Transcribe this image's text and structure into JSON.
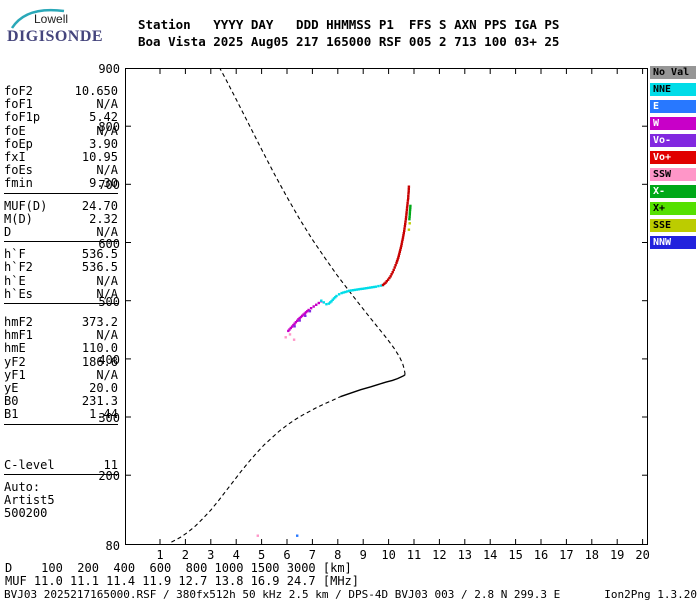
{
  "logo": {
    "line1": "Lowell",
    "line2": "DIGISONDE"
  },
  "header": {
    "line1": "Station   YYYY DAY   DDD HHMMSS P1  FFS S AXN PPS IGA PS",
    "line2": "Boa Vista 2025 Aug05 217 165000 RSF 005 2 713 100 03+ 25"
  },
  "params": {
    "groups": [
      {
        "rows": [
          {
            "label": "foF2",
            "value": "10.650"
          },
          {
            "label": "foF1",
            "value": "N/A"
          },
          {
            "label": "foF1p",
            "value": "5.42"
          },
          {
            "label": "foE",
            "value": "N/A"
          },
          {
            "label": "foEp",
            "value": "3.90"
          },
          {
            "label": "fxI",
            "value": "10.95"
          },
          {
            "label": "foEs",
            "value": "N/A"
          },
          {
            "label": "fmin",
            "value": "9.30"
          }
        ]
      },
      {
        "rows": [
          {
            "label": "MUF(D)",
            "value": "24.70"
          },
          {
            "label": "M(D)",
            "value": "2.32"
          },
          {
            "label": "D",
            "value": "N/A"
          }
        ]
      },
      {
        "rows": [
          {
            "label": "h`F",
            "value": "536.5"
          },
          {
            "label": "h`F2",
            "value": "536.5"
          },
          {
            "label": "h`E",
            "value": "N/A"
          },
          {
            "label": "h`Es",
            "value": "N/A"
          }
        ]
      },
      {
        "rows": [
          {
            "label": "hmF2",
            "value": "373.2"
          },
          {
            "label": "hmF1",
            "value": "N/A"
          },
          {
            "label": "hmE",
            "value": "110.0"
          },
          {
            "label": "yF2",
            "value": "186.6"
          },
          {
            "label": "yF1",
            "value": "N/A"
          },
          {
            "label": "yE",
            "value": "20.0"
          },
          {
            "label": "B0",
            "value": "231.3"
          },
          {
            "label": "B1",
            "value": "1.44"
          }
        ]
      },
      {
        "rows": [
          {
            "label": "C-level",
            "value": "11"
          }
        ]
      }
    ],
    "footer": [
      "Auto:",
      "Artist5",
      "500200"
    ]
  },
  "legend": {
    "items": [
      {
        "label": "No Val",
        "color": "#969696",
        "text_color": "#000000"
      },
      {
        "label": "NNE",
        "color": "#00DCE8",
        "text_color": "#000000"
      },
      {
        "label": "E",
        "color": "#2878FF",
        "text_color": "#ffffff"
      },
      {
        "label": "W",
        "color": "#C800C8",
        "text_color": "#ffffff"
      },
      {
        "label": "Vo-",
        "color": "#8228E0",
        "text_color": "#ffffff"
      },
      {
        "label": "Vo+",
        "color": "#E00000",
        "text_color": "#ffffff"
      },
      {
        "label": "SSW",
        "color": "#FF96C8",
        "text_color": "#000000"
      },
      {
        "label": "X-",
        "color": "#00A818",
        "text_color": "#ffffff"
      },
      {
        "label": "X+",
        "color": "#55E000",
        "text_color": "#000000"
      },
      {
        "label": "SSE",
        "color": "#BCCC00",
        "text_color": "#000000"
      },
      {
        "label": "NNW",
        "color": "#2222DD",
        "text_color": "#ffffff"
      }
    ]
  },
  "dmuf": {
    "d_label": "D",
    "d_values": [
      "100",
      "200",
      "400",
      "600",
      "800",
      "1000",
      "1500",
      "3000"
    ],
    "d_unit": "[km]",
    "muf_label": "MUF",
    "muf_values": [
      "11.0",
      "11.1",
      "11.4",
      "11.9",
      "12.7",
      "13.8",
      "16.9",
      "24.7"
    ],
    "muf_unit": "[MHz]"
  },
  "status": {
    "left": "BVJ03_2025217165000.RSF / 380fx512h 50 kHz 2.5 km / DPS-4D BVJ03 003 / 2.8 N 299.3 E",
    "right": "Ion2Png 1.3.20"
  },
  "chart_data": {
    "type": "scatter",
    "title": "Digisonde ionogram, Boa Vista 2025 Aug05 217 165000",
    "x_axis": {
      "ticks": [
        1,
        2,
        3,
        4,
        5,
        6,
        7,
        8,
        9,
        10,
        11,
        12,
        13,
        14,
        15,
        16,
        17,
        18,
        19,
        20
      ],
      "range": [
        -0.38,
        20.2
      ],
      "unit": "MHz"
    },
    "y_axis": {
      "ticks": [
        900,
        800,
        700,
        600,
        500,
        400,
        300,
        200,
        80
      ],
      "range": [
        80,
        900
      ],
      "unit": "km"
    },
    "grid": false,
    "profile": [
      {
        "name": "bottomside-extrapolated",
        "style": "dashed",
        "points": [
          [
            1.45,
            85
          ],
          [
            1.8,
            93
          ],
          [
            2.1,
            102
          ],
          [
            2.4,
            113
          ],
          [
            2.7,
            126
          ],
          [
            3.0,
            140
          ],
          [
            3.3,
            156
          ],
          [
            3.6,
            173
          ],
          [
            3.9,
            190
          ],
          [
            4.2,
            207
          ],
          [
            4.5,
            223
          ],
          [
            4.8,
            238
          ],
          [
            5.1,
            252
          ],
          [
            5.42,
            265
          ],
          [
            5.7,
            276
          ],
          [
            6.0,
            286
          ],
          [
            6.3,
            295
          ],
          [
            6.6,
            303
          ],
          [
            6.9,
            310
          ],
          [
            7.2,
            317
          ],
          [
            7.5,
            323
          ],
          [
            7.8,
            329
          ],
          [
            8.1,
            335
          ]
        ]
      },
      {
        "name": "bottomside-measured",
        "style": "solid",
        "points": [
          [
            8.1,
            335
          ],
          [
            8.5,
            341
          ],
          [
            8.9,
            347
          ],
          [
            9.3,
            352
          ],
          [
            9.6,
            356
          ],
          [
            9.9,
            360
          ],
          [
            10.15,
            363
          ],
          [
            10.35,
            366
          ],
          [
            10.5,
            369
          ],
          [
            10.6,
            371
          ],
          [
            10.65,
            373
          ]
        ]
      },
      {
        "name": "topside-extrapolated",
        "style": "dashed",
        "points": [
          [
            10.65,
            373
          ],
          [
            10.62,
            382
          ],
          [
            10.55,
            392
          ],
          [
            10.42,
            404
          ],
          [
            10.22,
            418
          ],
          [
            9.95,
            434
          ],
          [
            9.62,
            452
          ],
          [
            9.25,
            472
          ],
          [
            8.85,
            494
          ],
          [
            8.42,
            518
          ],
          [
            7.97,
            544
          ],
          [
            7.5,
            573
          ],
          [
            7.0,
            605
          ],
          [
            6.5,
            640
          ],
          [
            6.0,
            678
          ],
          [
            5.5,
            718
          ],
          [
            5.0,
            760
          ],
          [
            4.5,
            803
          ],
          [
            4.0,
            846
          ],
          [
            3.6,
            880
          ],
          [
            3.35,
            900
          ]
        ]
      }
    ],
    "traces": [
      {
        "name": "F-trace-W",
        "legend": "W",
        "color": "#C800C8",
        "mode": "line",
        "points": [
          [
            6.05,
            448
          ],
          [
            6.15,
            453
          ],
          [
            6.25,
            458
          ],
          [
            6.35,
            463
          ],
          [
            6.45,
            468
          ],
          [
            6.55,
            472
          ],
          [
            6.65,
            476
          ],
          [
            6.75,
            480
          ],
          [
            6.85,
            484
          ],
          [
            6.95,
            487
          ],
          [
            7.05,
            490
          ],
          [
            7.15,
            493
          ],
          [
            7.25,
            496
          ],
          [
            7.35,
            499
          ]
        ]
      },
      {
        "name": "F-trace-NNE",
        "legend": "NNE",
        "color": "#00DCE8",
        "mode": "line",
        "points": [
          [
            7.35,
            500
          ],
          [
            7.45,
            497
          ],
          [
            7.55,
            494
          ],
          [
            7.65,
            495
          ],
          [
            7.75,
            499
          ],
          [
            7.85,
            504
          ],
          [
            7.95,
            508
          ],
          [
            8.05,
            511
          ],
          [
            8.15,
            513
          ],
          [
            8.3,
            515
          ],
          [
            8.45,
            517
          ],
          [
            8.6,
            518
          ],
          [
            8.75,
            519
          ],
          [
            8.9,
            520
          ],
          [
            9.05,
            521
          ],
          [
            9.2,
            522
          ],
          [
            9.35,
            523
          ],
          [
            9.5,
            524
          ],
          [
            9.6,
            525
          ],
          [
            9.7,
            526
          ],
          [
            9.78,
            527
          ]
        ]
      },
      {
        "name": "F-trace-Vo+",
        "legend": "Vo+",
        "color": "#C80000",
        "mode": "line",
        "points": [
          [
            9.78,
            527
          ],
          [
            9.88,
            531
          ],
          [
            9.98,
            536
          ],
          [
            10.08,
            542
          ],
          [
            10.16,
            549
          ],
          [
            10.24,
            557
          ],
          [
            10.31,
            565
          ],
          [
            10.38,
            574
          ],
          [
            10.44,
            584
          ],
          [
            10.5,
            594
          ],
          [
            10.55,
            605
          ],
          [
            10.6,
            616
          ],
          [
            10.64,
            628
          ],
          [
            10.68,
            640
          ],
          [
            10.71,
            652
          ],
          [
            10.74,
            664
          ],
          [
            10.77,
            676
          ],
          [
            10.79,
            688
          ],
          [
            10.8,
            696
          ]
        ]
      },
      {
        "name": "F-trace-X-",
        "legend": "X-",
        "color": "#00A818",
        "mode": "line",
        "points": [
          [
            10.82,
            640
          ],
          [
            10.84,
            652
          ],
          [
            10.86,
            663
          ]
        ]
      },
      {
        "name": "F-trace-SSE",
        "legend": "SSE",
        "color": "#BCCC00",
        "mode": "dots",
        "points": [
          [
            10.8,
            622
          ],
          [
            10.83,
            633
          ]
        ]
      },
      {
        "name": "scatter-Vo-",
        "legend": "Vo-",
        "color": "#8228E0",
        "mode": "dots",
        "points": [
          [
            6.3,
            456
          ],
          [
            6.5,
            466
          ],
          [
            6.72,
            474
          ],
          [
            6.9,
            482
          ]
        ]
      },
      {
        "name": "scatter-SSW",
        "legend": "SSW",
        "color": "#FF96C8",
        "mode": "dots",
        "points": [
          [
            5.95,
            437
          ],
          [
            6.12,
            442
          ],
          [
            6.28,
            433
          ],
          [
            4.85,
            96
          ]
        ]
      },
      {
        "name": "scatter-E",
        "legend": "E",
        "color": "#2878FF",
        "mode": "dots",
        "points": [
          [
            6.4,
            96
          ]
        ]
      }
    ]
  }
}
